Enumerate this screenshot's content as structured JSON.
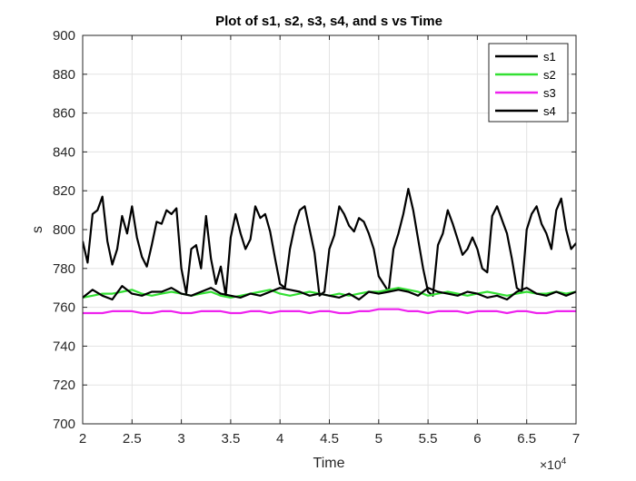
{
  "chart_data": {
    "type": "line",
    "title": "Plot of s1, s2, s3, s4, and s vs Time",
    "xlabel": "Time",
    "ylabel": "s",
    "x_exponent_label": "×10",
    "x_exponent_power": "4",
    "xlim": [
      2,
      7
    ],
    "ylim": [
      700,
      900
    ],
    "xticks": [
      2,
      2.5,
      3,
      3.5,
      4,
      4.5,
      5,
      5.5,
      6,
      6.5,
      7
    ],
    "xtick_labels": [
      "2",
      "2.5",
      "3",
      "3.5",
      "4",
      "4.5",
      "5",
      "5.5",
      "6",
      "6.5",
      "7"
    ],
    "yticks": [
      700,
      720,
      740,
      760,
      780,
      800,
      820,
      840,
      860,
      880,
      900
    ],
    "ytick_labels": [
      "700",
      "720",
      "740",
      "760",
      "780",
      "800",
      "820",
      "840",
      "860",
      "880",
      "900"
    ],
    "grid": true,
    "legend_position": "top-right",
    "series": [
      {
        "name": "s1",
        "color": "#000000",
        "x": [
          2.0,
          2.05,
          2.1,
          2.15,
          2.2,
          2.25,
          2.3,
          2.35,
          2.4,
          2.45,
          2.5,
          2.55,
          2.6,
          2.65,
          2.7,
          2.75,
          2.8,
          2.85,
          2.9,
          2.95,
          3.0,
          3.05,
          3.1,
          3.15,
          3.2,
          3.25,
          3.3,
          3.35,
          3.4,
          3.45,
          3.5,
          3.55,
          3.6,
          3.65,
          3.7,
          3.75,
          3.8,
          3.85,
          3.9,
          3.95,
          4.0,
          4.05,
          4.1,
          4.15,
          4.2,
          4.25,
          4.3,
          4.35,
          4.4,
          4.45,
          4.5,
          4.55,
          4.6,
          4.65,
          4.7,
          4.75,
          4.8,
          4.85,
          4.9,
          4.95,
          5.0,
          5.05,
          5.1,
          5.15,
          5.2,
          5.25,
          5.3,
          5.35,
          5.4,
          5.45,
          5.5,
          5.55,
          5.6,
          5.65,
          5.7,
          5.75,
          5.8,
          5.85,
          5.9,
          5.95,
          6.0,
          6.05,
          6.1,
          6.15,
          6.2,
          6.25,
          6.3,
          6.35,
          6.4,
          6.45,
          6.5,
          6.55,
          6.6,
          6.65,
          6.7,
          6.75,
          6.8,
          6.85,
          6.9,
          6.95,
          7.0
        ],
        "y": [
          794,
          783,
          808,
          810,
          817,
          794,
          782,
          790,
          807,
          798,
          812,
          796,
          786,
          781,
          792,
          804,
          803,
          810,
          808,
          811,
          780,
          767,
          790,
          792,
          780,
          807,
          785,
          772,
          781,
          766,
          796,
          808,
          798,
          790,
          795,
          812,
          806,
          808,
          799,
          785,
          772,
          770,
          790,
          802,
          810,
          812,
          800,
          788,
          766,
          768,
          790,
          797,
          812,
          808,
          802,
          799,
          806,
          804,
          798,
          790,
          776,
          772,
          768,
          790,
          798,
          808,
          821,
          810,
          795,
          780,
          768,
          766,
          792,
          798,
          810,
          803,
          795,
          787,
          790,
          796,
          790,
          780,
          778,
          807,
          812,
          805,
          798,
          785,
          770,
          768,
          800,
          808,
          812,
          803,
          798,
          790,
          810,
          816,
          800,
          790,
          793
        ]
      },
      {
        "name": "s2",
        "color": "#33e033",
        "x": [
          2.0,
          2.1,
          2.2,
          2.3,
          2.4,
          2.5,
          2.6,
          2.7,
          2.8,
          2.9,
          3.0,
          3.1,
          3.2,
          3.3,
          3.4,
          3.5,
          3.6,
          3.7,
          3.8,
          3.9,
          4.0,
          4.1,
          4.2,
          4.3,
          4.4,
          4.5,
          4.6,
          4.7,
          4.8,
          4.9,
          5.0,
          5.1,
          5.2,
          5.3,
          5.4,
          5.5,
          5.6,
          5.7,
          5.8,
          5.9,
          6.0,
          6.1,
          6.2,
          6.3,
          6.4,
          6.5,
          6.6,
          6.7,
          6.8,
          6.9,
          7.0
        ],
        "y": [
          765,
          766,
          767,
          767,
          768,
          769,
          767,
          766,
          767,
          768,
          767,
          766,
          767,
          768,
          766,
          765,
          766,
          767,
          768,
          769,
          767,
          766,
          767,
          768,
          767,
          766,
          767,
          766,
          767,
          768,
          768,
          769,
          770,
          769,
          768,
          766,
          767,
          768,
          767,
          766,
          767,
          768,
          767,
          766,
          767,
          768,
          767,
          767,
          768,
          767,
          768
        ]
      },
      {
        "name": "s3",
        "color": "#ee22ee",
        "x": [
          2.0,
          2.1,
          2.2,
          2.3,
          2.4,
          2.5,
          2.6,
          2.7,
          2.8,
          2.9,
          3.0,
          3.1,
          3.2,
          3.3,
          3.4,
          3.5,
          3.6,
          3.7,
          3.8,
          3.9,
          4.0,
          4.1,
          4.2,
          4.3,
          4.4,
          4.5,
          4.6,
          4.7,
          4.8,
          4.9,
          5.0,
          5.1,
          5.2,
          5.3,
          5.4,
          5.5,
          5.6,
          5.7,
          5.8,
          5.9,
          6.0,
          6.1,
          6.2,
          6.3,
          6.4,
          6.5,
          6.6,
          6.7,
          6.8,
          6.9,
          7.0
        ],
        "y": [
          757,
          757,
          757,
          758,
          758,
          758,
          757,
          757,
          758,
          758,
          757,
          757,
          758,
          758,
          758,
          757,
          757,
          758,
          758,
          757,
          758,
          758,
          758,
          757,
          758,
          758,
          757,
          757,
          758,
          758,
          759,
          759,
          759,
          758,
          758,
          757,
          758,
          758,
          758,
          757,
          758,
          758,
          758,
          757,
          758,
          758,
          757,
          757,
          758,
          758,
          758
        ]
      },
      {
        "name": "s4",
        "color": "#000000",
        "x": [
          2.0,
          2.1,
          2.2,
          2.3,
          2.4,
          2.5,
          2.6,
          2.7,
          2.8,
          2.9,
          3.0,
          3.1,
          3.2,
          3.3,
          3.4,
          3.5,
          3.6,
          3.7,
          3.8,
          3.9,
          4.0,
          4.1,
          4.2,
          4.3,
          4.4,
          4.5,
          4.6,
          4.7,
          4.8,
          4.9,
          5.0,
          5.1,
          5.2,
          5.3,
          5.4,
          5.5,
          5.6,
          5.7,
          5.8,
          5.9,
          6.0,
          6.1,
          6.2,
          6.3,
          6.4,
          6.5,
          6.6,
          6.7,
          6.8,
          6.9,
          7.0
        ],
        "y": [
          765,
          769,
          766,
          764,
          771,
          767,
          766,
          768,
          768,
          770,
          767,
          766,
          768,
          770,
          767,
          766,
          765,
          767,
          766,
          768,
          770,
          769,
          768,
          766,
          767,
          766,
          765,
          767,
          764,
          768,
          767,
          768,
          769,
          768,
          766,
          770,
          768,
          767,
          766,
          768,
          767,
          765,
          766,
          764,
          768,
          770,
          767,
          766,
          768,
          766,
          768
        ]
      }
    ]
  }
}
